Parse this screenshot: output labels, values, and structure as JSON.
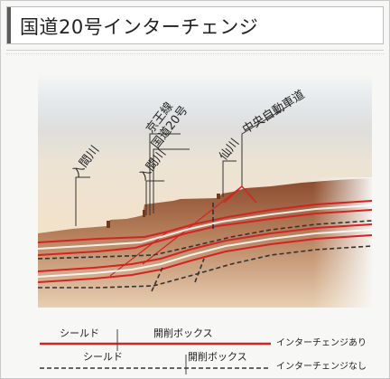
{
  "page": {
    "title": "国道20号インターチェンジ"
  },
  "diagram": {
    "labels": {
      "iruma_river": "入間川",
      "keio_line": "京王線",
      "route20": "国道20号",
      "iruma_river_2": "入間川",
      "sen_river": "仙川",
      "chuo_expressway": "中央自動車道"
    },
    "legend": {
      "with_ic": {
        "shield": "シールド",
        "box": "開削ボックス",
        "note": "インターチェンジあり",
        "color": "#d42323",
        "style": "solid"
      },
      "without_ic": {
        "shield": "シールド",
        "box": "開削ボックス",
        "note": "インターチェンジなし",
        "color": "#333333",
        "style": "dashed"
      }
    },
    "colors": {
      "sky_top": "#c8d6e6",
      "sky_bottom": "#f3e2c8",
      "ground_top": "#8a4a2c",
      "ground_bottom": "#e2c5a4",
      "tunnel_red": "#d42323",
      "tunnel_dark": "#333333"
    }
  }
}
